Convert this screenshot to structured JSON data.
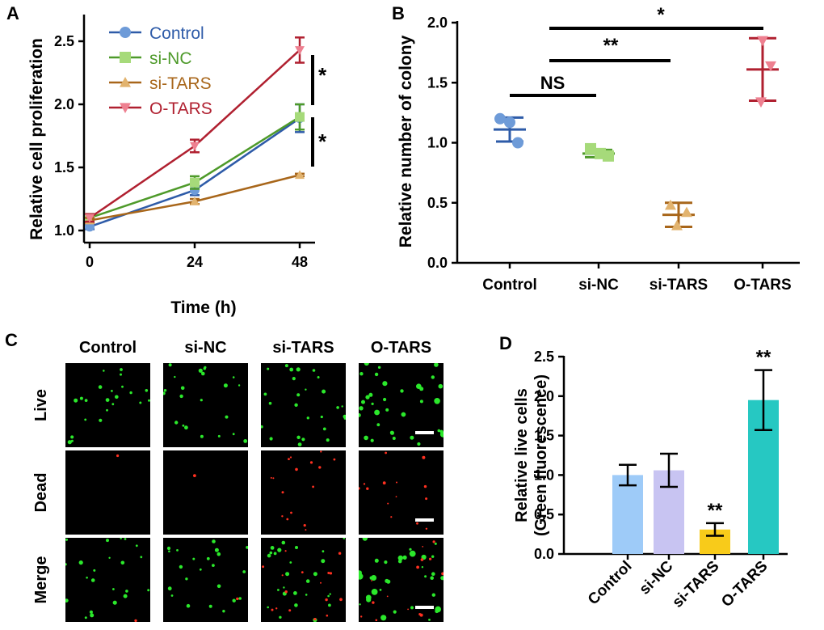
{
  "panels": {
    "a": "A",
    "b": "B",
    "c": "C",
    "d": "D"
  },
  "chart_data": [
    {
      "id": "A",
      "type": "line",
      "xlabel": "Time (h)",
      "ylabel": "Relative cell proliferation",
      "x": [
        0,
        24,
        48
      ],
      "xticks": [
        "0",
        "24",
        "48"
      ],
      "yticks": [
        "1.0",
        "1.5",
        "2.0",
        "2.5"
      ],
      "ylim": [
        0.97,
        2.62
      ],
      "series": [
        {
          "name": "Control",
          "color": "#2E5BA8",
          "marker": "circle",
          "marker_color": "#6E9BD8",
          "values": [
            1.03,
            1.32,
            1.89
          ],
          "errors": [
            0.02,
            0.04,
            0.11
          ]
        },
        {
          "name": "si-NC",
          "color": "#4E9A2A",
          "marker": "square",
          "marker_color": "#A6DA7A",
          "values": [
            1.1,
            1.38,
            1.9
          ],
          "errors": [
            0.03,
            0.05,
            0.1
          ]
        },
        {
          "name": "si-TARS",
          "color": "#A8661A",
          "marker": "triangle-up",
          "marker_color": "#E2B36E",
          "values": [
            1.08,
            1.23,
            1.44
          ],
          "errors": [
            0.02,
            0.02,
            0.01
          ]
        },
        {
          "name": "O-TARS",
          "color": "#B02030",
          "marker": "triangle-down",
          "marker_color": "#EE8090",
          "values": [
            1.1,
            1.67,
            2.43
          ],
          "errors": [
            0.03,
            0.05,
            0.1
          ]
        }
      ],
      "annotations": [
        "*",
        "*"
      ]
    },
    {
      "id": "B",
      "type": "scatter",
      "ylabel": "Relative number of colony",
      "categories": [
        "Control",
        "si-NC",
        "si-TARS",
        "O-TARS"
      ],
      "yticks": [
        "0.0",
        "0.5",
        "1.0",
        "1.5",
        "2.0"
      ],
      "ylim": [
        0,
        2.0
      ],
      "groups": [
        {
          "name": "Control",
          "color": "#2E5BA8",
          "marker": "circle",
          "marker_color": "#6E9BD8",
          "points": [
            1.2,
            1.17,
            1.0
          ],
          "mean": 1.11,
          "sd": 0.1
        },
        {
          "name": "si-NC",
          "color": "#4E9A2A",
          "marker": "square",
          "marker_color": "#A6DA7A",
          "points": [
            0.95,
            0.91,
            0.89
          ],
          "mean": 0.91,
          "sd": 0.03
        },
        {
          "name": "si-TARS",
          "color": "#A8661A",
          "marker": "triangle-up",
          "marker_color": "#E2B36E",
          "points": [
            0.48,
            0.42,
            0.31
          ],
          "mean": 0.4,
          "sd": 0.1
        },
        {
          "name": "O-TARS",
          "color": "#B02030",
          "marker": "triangle-down",
          "marker_color": "#EE8090",
          "points": [
            1.85,
            1.64,
            1.34
          ],
          "mean": 1.61,
          "sd": 0.26
        }
      ],
      "significance": [
        {
          "label": "NS",
          "from": "Control",
          "to": "si-NC"
        },
        {
          "label": "**",
          "from": "si-NC",
          "to": "O-TARS"
        },
        {
          "label": "*",
          "from": "Control",
          "to": "O-TARS"
        }
      ]
    },
    {
      "id": "D",
      "type": "bar",
      "ylabel": "Relative live cells",
      "ylabel2": "(Green fluorescence)",
      "categories": [
        "Control",
        "si-NC",
        "si-TARS",
        "O-TARS"
      ],
      "yticks": [
        "0.0",
        "0.5",
        "1.0",
        "1.5",
        "2.0",
        "2.5"
      ],
      "ylim": [
        0,
        2.5
      ],
      "values": [
        1.0,
        1.06,
        0.31,
        1.95
      ],
      "errors": [
        0.13,
        0.21,
        0.08,
        0.38
      ],
      "colors": [
        "#9ECBF8",
        "#C8C4F2",
        "#F8CB1A",
        "#26C8C2"
      ],
      "annotations": [
        "",
        "",
        "**",
        "**"
      ]
    }
  ],
  "micrographs": {
    "columns": [
      "Control",
      "si-NC",
      "si-TARS",
      "O-TARS"
    ],
    "rows": [
      "Live",
      "Dead",
      "Merge"
    ]
  }
}
